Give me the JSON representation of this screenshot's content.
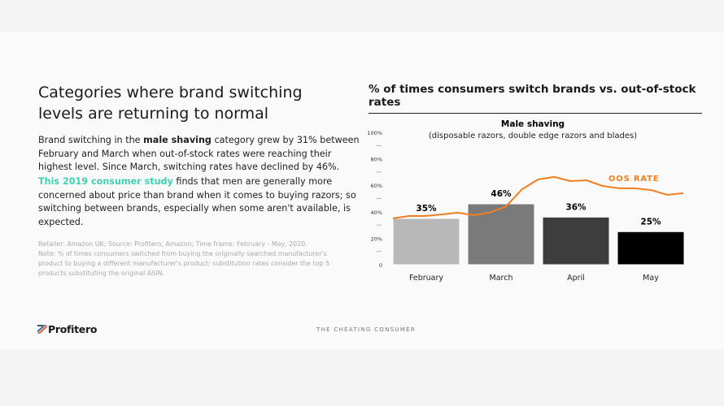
{
  "slide": {
    "title": "Categories where brand switching levels are returning to normal",
    "paragraph1": {
      "before": "Brand switching in the ",
      "bold": "male shaving",
      "after": " category grew by 31% between February and March when out-of-stock rates were reaching their highest level. Since March, switching rates have declined by 46%."
    },
    "paragraph2": {
      "link": "This 2019 consumer study",
      "after": " finds that men are generally more concerned about price than brand when it comes to buying razors; so switching between brands, especially when some aren't available, is expected."
    },
    "note_line1": "Retailer: Amazon UK; Source: Profitero, Amazon; Time frame: February - May, 2020.",
    "note_line2": "Note: % of times consumers switched from buying the originally searched manufacturer's product to buying a different manufacturer's product; substitution rates consider the top 5 products substituting the original ASIN.",
    "logo_text": "Profitero",
    "footer": "THE CHEATING CONSUMER",
    "chart_heading": "% of times consumers switch brands vs. out-of-stock rates"
  },
  "colors": {
    "accent_teal": "#3fd1b3",
    "oos_line": "#f07f22"
  },
  "chart_data": {
    "type": "bar",
    "title": "Male shaving",
    "subtitle": "(disposable razors, double edge razors and blades)",
    "categories": [
      "February",
      "March",
      "April",
      "May"
    ],
    "values": [
      35,
      46,
      36,
      25
    ],
    "data_labels": [
      "35%",
      "46%",
      "36%",
      "25%"
    ],
    "bar_colors": [
      "#b8b8b8",
      "#7a7a7a",
      "#3d3d3d",
      "#000000"
    ],
    "ylim": [
      0,
      100
    ],
    "ytick_labels": [
      "0",
      "20%",
      "40%",
      "60%",
      "80%",
      "100%"
    ],
    "ytick_values": [
      0,
      20,
      40,
      60,
      80,
      100
    ],
    "grid": false,
    "line_series": {
      "name": "OOS RATE",
      "values": [
        35,
        36.8,
        36.8,
        38,
        39.3,
        37.4,
        39.3,
        44,
        57,
        64.4,
        66.3,
        63.2,
        63.8,
        59.5,
        57.7,
        57.7,
        56.4,
        52.8,
        54
      ]
    }
  }
}
